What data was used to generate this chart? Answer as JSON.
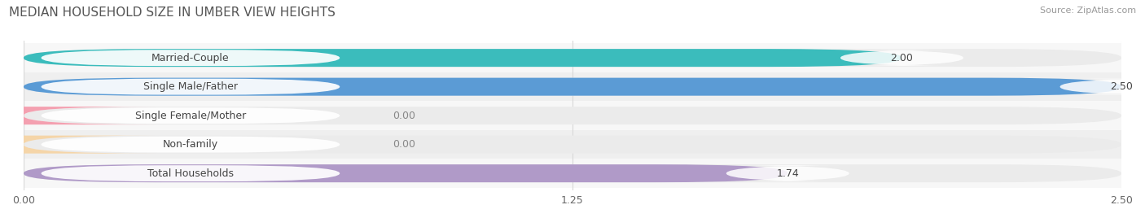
{
  "title": "MEDIAN HOUSEHOLD SIZE IN UMBER VIEW HEIGHTS",
  "source": "Source: ZipAtlas.com",
  "categories": [
    "Married-Couple",
    "Single Male/Father",
    "Single Female/Mother",
    "Non-family",
    "Total Households"
  ],
  "values": [
    2.0,
    2.5,
    0.0,
    0.0,
    1.74
  ],
  "bar_colors": [
    "#3bbcbc",
    "#5b9bd5",
    "#f4a0b0",
    "#f5d5a8",
    "#b09ac8"
  ],
  "bar_bg_color": "#ebebeb",
  "xlim": [
    0,
    2.5
  ],
  "xticks": [
    0.0,
    1.25,
    2.5
  ],
  "xtick_labels": [
    "0.00",
    "1.25",
    "2.50"
  ],
  "bar_height": 0.62,
  "figsize": [
    14.06,
    2.68
  ],
  "dpi": 100,
  "bg_color": "#ffffff",
  "grid_color": "#d8d8d8",
  "title_fontsize": 11,
  "label_fontsize": 9,
  "value_fontsize": 9,
  "tick_fontsize": 9,
  "source_fontsize": 8,
  "row_bg_colors": [
    "#f5f5f5",
    "#f0f0f0",
    "#f5f5f5",
    "#f0f0f0",
    "#f5f5f5"
  ]
}
